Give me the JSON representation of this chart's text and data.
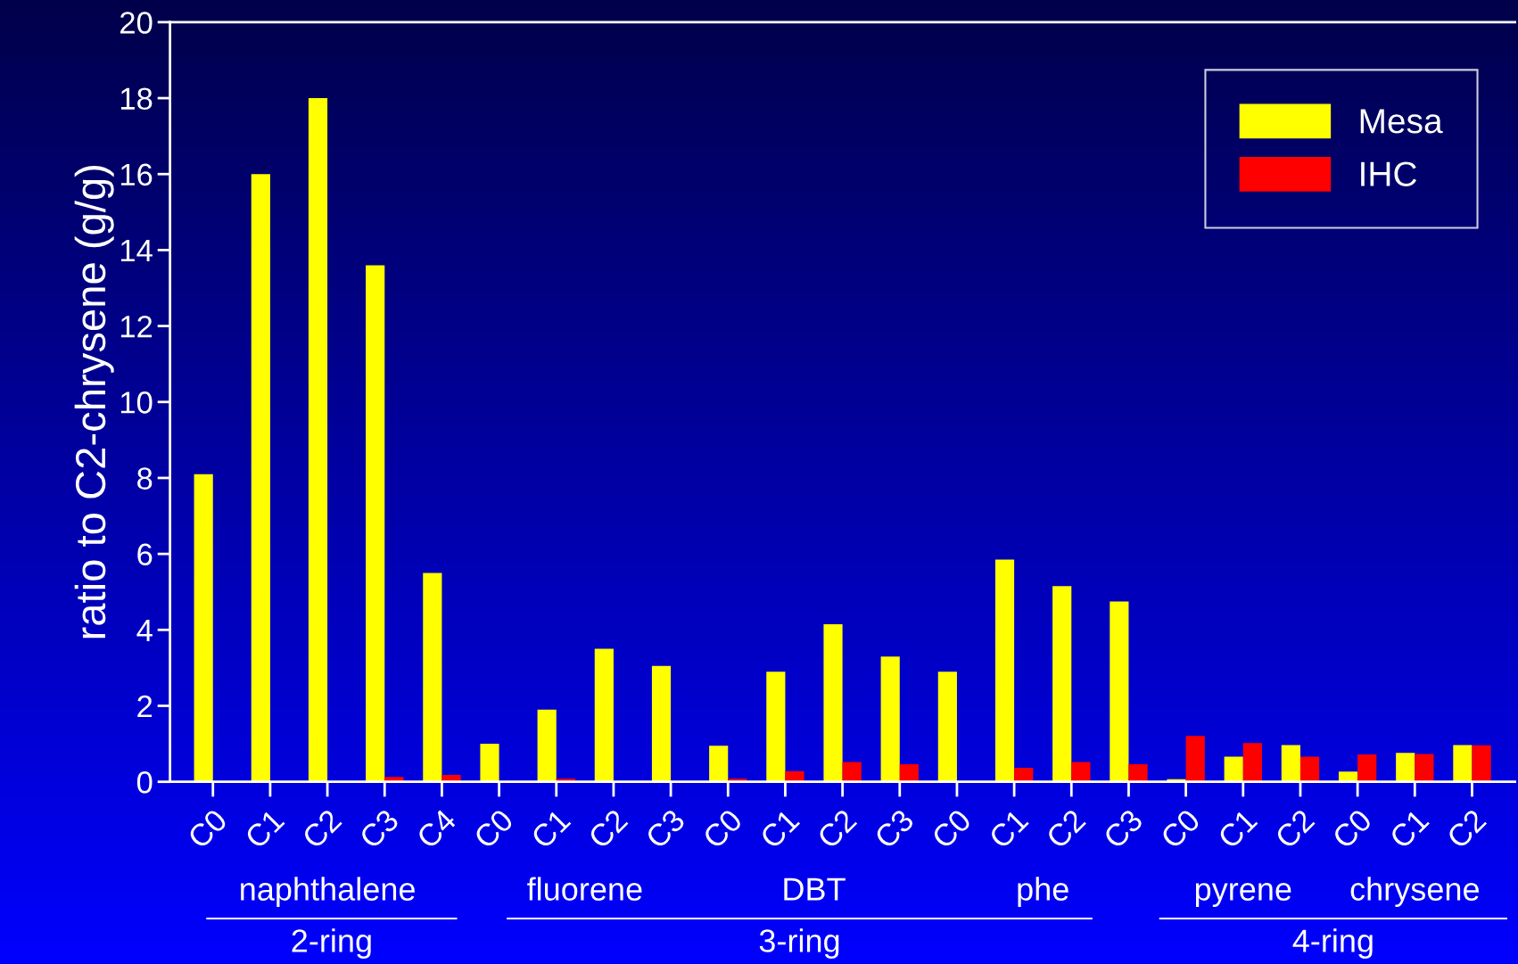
{
  "chart_data": {
    "type": "bar",
    "ylabel": "ratio to C2-chrysene (g/g)",
    "categories": [
      "C0",
      "C1",
      "C2",
      "C3",
      "C4",
      "C0",
      "C1",
      "C2",
      "C3",
      "C0",
      "C1",
      "C2",
      "C3",
      "C0",
      "C1",
      "C2",
      "C3",
      "C0",
      "C1",
      "C2",
      "C0",
      "C1",
      "C2"
    ],
    "series": [
      {
        "name": "Mesa",
        "color": "#ffff00",
        "values": [
          8.1,
          16,
          18,
          13.6,
          5.5,
          1.0,
          1.9,
          3.5,
          3.05,
          0.95,
          2.9,
          4.15,
          3.3,
          2.9,
          5.85,
          5.15,
          4.75,
          0.07,
          0.66,
          0.97,
          0.27,
          0.76,
          0.97
        ]
      },
      {
        "name": "IHC",
        "color": "#ff0000",
        "values": [
          0,
          0,
          0,
          0.13,
          0.18,
          null,
          0.08,
          null,
          0,
          0.08,
          0.28,
          0.52,
          0.46,
          null,
          0.37,
          0.52,
          0.46,
          1.21,
          1.02,
          0.66,
          0.72,
          0.73,
          0.96
        ]
      }
    ],
    "ylim": [
      0,
      20
    ],
    "yticks": [
      0,
      2,
      4,
      6,
      8,
      10,
      12,
      14,
      16,
      18,
      20
    ],
    "legend": "top right",
    "grid": false,
    "annotations": [
      "naphthalene",
      "fluorene",
      "DBT",
      "phe",
      "pyrene",
      "chrysene",
      "2-ring",
      "3-ring",
      "4-ring"
    ]
  }
}
